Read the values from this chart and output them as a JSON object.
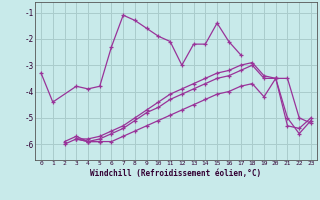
{
  "xlabel": "Windchill (Refroidissement éolien,°C)",
  "bg_color": "#c8eaea",
  "line_color": "#993399",
  "grid_color": "#aacccc",
  "xlim": [
    -0.5,
    23.5
  ],
  "ylim": [
    -6.6,
    -0.6
  ],
  "yticks": [
    -6,
    -5,
    -4,
    -3,
    -2,
    -1
  ],
  "xticks": [
    0,
    1,
    2,
    3,
    4,
    5,
    6,
    7,
    8,
    9,
    10,
    11,
    12,
    13,
    14,
    15,
    16,
    17,
    18,
    19,
    20,
    21,
    22,
    23
  ],
  "series": [
    {
      "x": [
        0,
        1,
        3,
        4,
        5,
        6,
        7,
        8,
        9,
        10,
        11,
        12,
        13,
        14,
        15,
        16,
        17
      ],
      "y": [
        -3.3,
        -4.4,
        -3.8,
        -3.9,
        -3.8,
        -2.3,
        -1.1,
        -1.3,
        -1.6,
        -1.9,
        -2.1,
        -3.0,
        -2.2,
        -2.2,
        -1.4,
        -2.1,
        -2.6
      ]
    },
    {
      "x": [
        2,
        3,
        4,
        5
      ],
      "y": [
        -5.9,
        -5.7,
        -5.9,
        -5.9
      ]
    },
    {
      "x": [
        2,
        3,
        4,
        5,
        6,
        7,
        8,
        9,
        10,
        11,
        12,
        13,
        14,
        15,
        16,
        17,
        18,
        19,
        20,
        21,
        22,
        23
      ],
      "y": [
        -6.0,
        -5.8,
        -5.9,
        -5.9,
        -5.9,
        -5.7,
        -5.5,
        -5.3,
        -5.1,
        -4.9,
        -4.7,
        -4.5,
        -4.3,
        -4.1,
        -4.0,
        -3.8,
        -3.7,
        -4.2,
        -3.5,
        -5.3,
        -5.4,
        -5.0
      ]
    },
    {
      "x": [
        3,
        4,
        5,
        6,
        7,
        8,
        9,
        10,
        11,
        12,
        13,
        14,
        15,
        16,
        17,
        18,
        19,
        20,
        21,
        22,
        23
      ],
      "y": [
        -5.8,
        -5.9,
        -5.8,
        -5.6,
        -5.4,
        -5.1,
        -4.8,
        -4.6,
        -4.3,
        -4.1,
        -3.9,
        -3.7,
        -3.5,
        -3.4,
        -3.2,
        -3.0,
        -3.5,
        -3.5,
        -5.0,
        -5.6,
        -5.1
      ]
    },
    {
      "x": [
        3,
        4,
        5,
        6,
        7,
        8,
        9,
        10,
        11,
        12,
        13,
        14,
        15,
        16,
        17,
        18,
        19,
        20,
        21,
        22,
        23
      ],
      "y": [
        -5.8,
        -5.8,
        -5.7,
        -5.5,
        -5.3,
        -5.0,
        -4.7,
        -4.4,
        -4.1,
        -3.9,
        -3.7,
        -3.5,
        -3.3,
        -3.2,
        -3.0,
        -2.9,
        -3.4,
        -3.5,
        -3.5,
        -5.0,
        -5.2
      ]
    }
  ]
}
